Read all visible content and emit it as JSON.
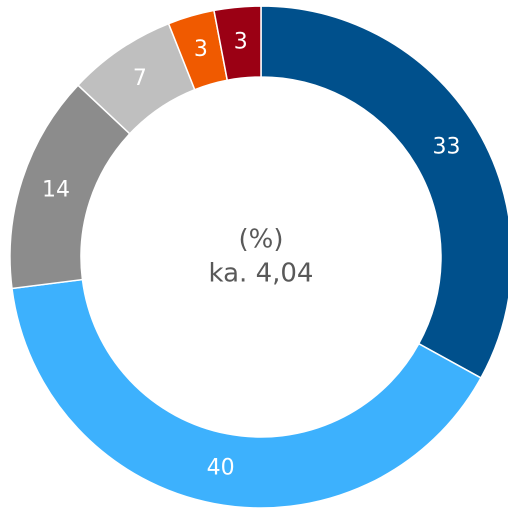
{
  "chart_data": {
    "type": "donut",
    "values": [
      33,
      40,
      14,
      7,
      3,
      3
    ],
    "colors": [
      "#00508c",
      "#3db1fd",
      "#8c8c8c",
      "#bfbfbf",
      "#f05a00",
      "#9b0014"
    ],
    "annotations": [
      "(%)",
      "ka. 4,04"
    ]
  }
}
